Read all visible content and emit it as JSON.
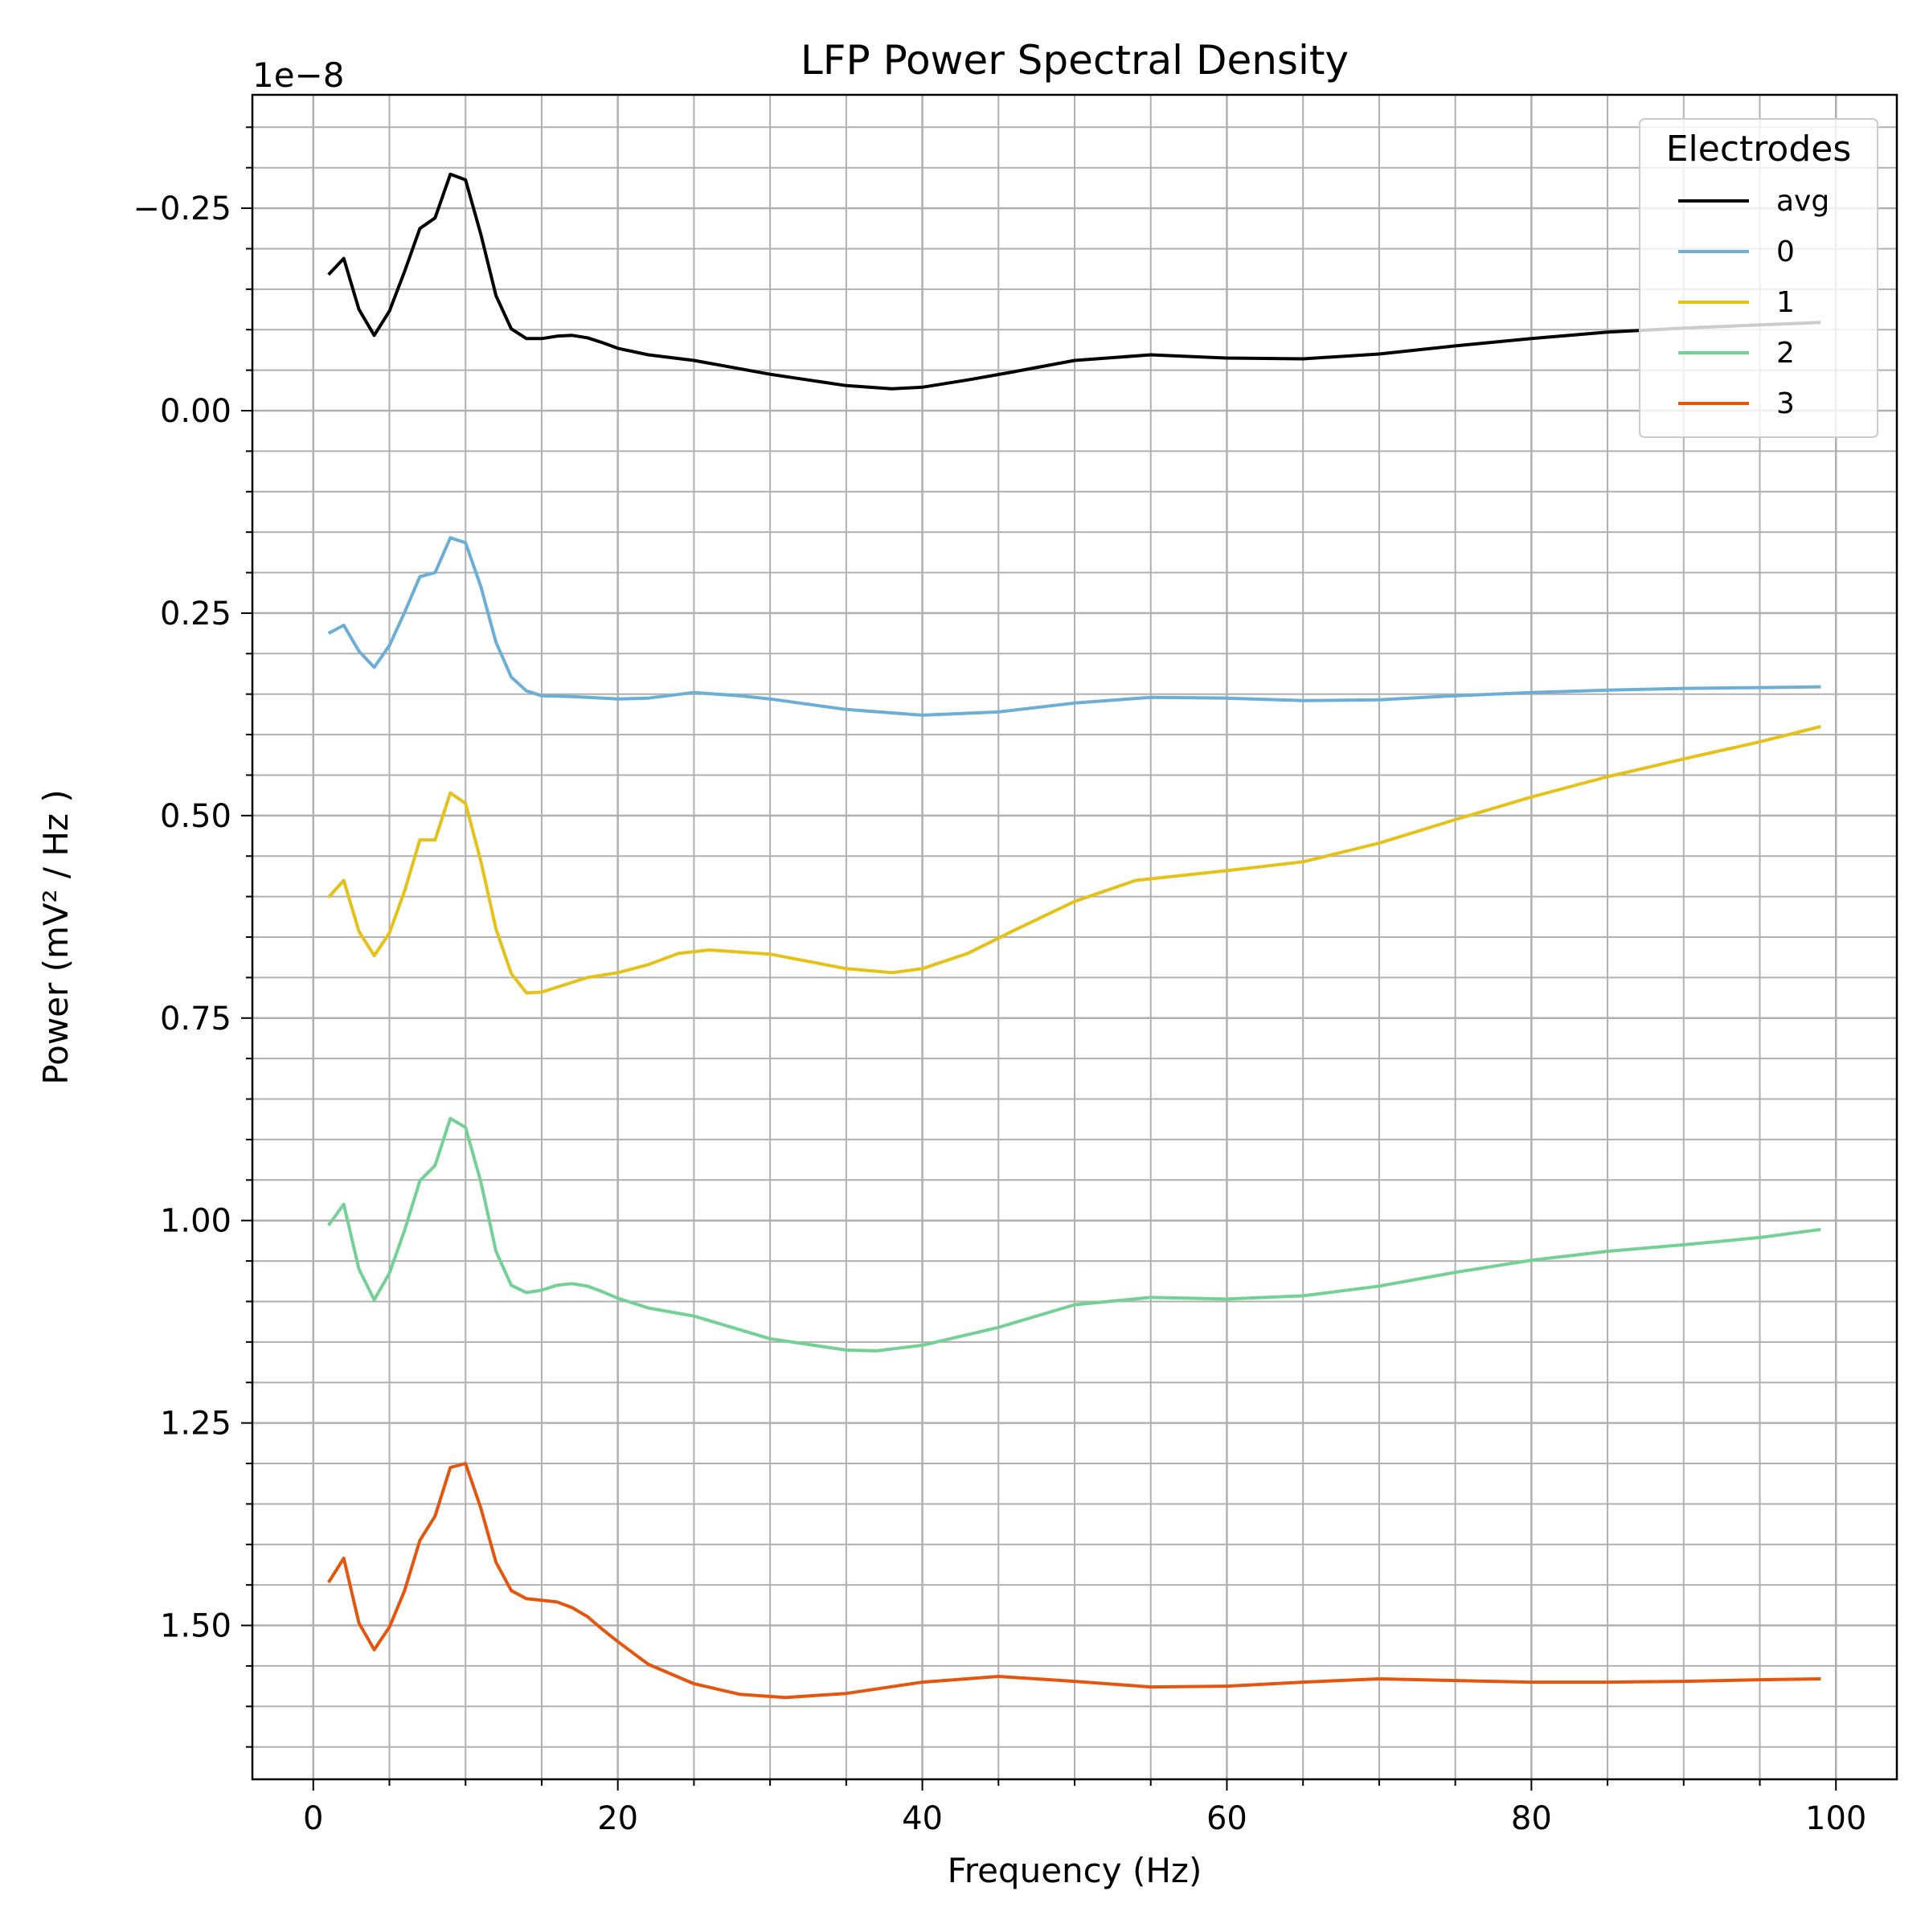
{
  "chart_data": {
    "type": "line",
    "title": "LFP Power Spectral Density",
    "xlabel": "Frequency (Hz)",
    "ylabel": "Power (mV² / Hz )",
    "y_offset_text": "1e−8",
    "y_inverted": true,
    "xlim": [
      -4,
      104
    ],
    "ylim": [
      -0.39,
      1.69
    ],
    "x_ticks": [
      0,
      20,
      40,
      60,
      80,
      100
    ],
    "x_tick_labels": [
      "0",
      "20",
      "40",
      "60",
      "80",
      "100"
    ],
    "y_ticks": [
      -0.25,
      0,
      0.25,
      0.5,
      0.75,
      1.0,
      1.25,
      1.5
    ],
    "y_tick_labels": [
      "−0.25",
      "0.00",
      "0.25",
      "0.50",
      "0.75",
      "1.00",
      "1.25",
      "1.50"
    ],
    "grid": true,
    "minor_grid": true,
    "legend": {
      "title": "Electrodes",
      "placement": "top-right"
    },
    "series": [
      {
        "name": "avg",
        "color": "#000000",
        "points": [
          [
            1,
            -0.168
          ],
          [
            2,
            -0.188
          ],
          [
            3,
            -0.125
          ],
          [
            4,
            -0.093
          ],
          [
            5,
            -0.123
          ],
          [
            6,
            -0.172
          ],
          [
            7,
            -0.225
          ],
          [
            8,
            -0.238
          ],
          [
            9,
            -0.292
          ],
          [
            10,
            -0.285
          ],
          [
            11,
            -0.218
          ],
          [
            12,
            -0.142
          ],
          [
            13,
            -0.101
          ],
          [
            14,
            -0.089
          ],
          [
            15,
            -0.089
          ],
          [
            16,
            -0.092
          ],
          [
            17,
            -0.093
          ],
          [
            18,
            -0.09
          ],
          [
            19,
            -0.084
          ],
          [
            20,
            -0.077
          ],
          [
            22,
            -0.069
          ],
          [
            25,
            -0.062
          ],
          [
            30,
            -0.045
          ],
          [
            35,
            -0.031
          ],
          [
            38,
            -0.027
          ],
          [
            40,
            -0.029
          ],
          [
            43,
            -0.038
          ],
          [
            46,
            -0.048
          ],
          [
            50,
            -0.062
          ],
          [
            55,
            -0.069
          ],
          [
            60,
            -0.065
          ],
          [
            65,
            -0.064
          ],
          [
            70,
            -0.07
          ],
          [
            75,
            -0.08
          ],
          [
            80,
            -0.089
          ],
          [
            85,
            -0.097
          ],
          [
            90,
            -0.102
          ],
          [
            95,
            -0.106
          ],
          [
            99,
            -0.109
          ]
        ]
      },
      {
        "name": "0",
        "color": "#6baed6",
        "points": [
          [
            1,
            0.275
          ],
          [
            2,
            0.265
          ],
          [
            3,
            0.297
          ],
          [
            4,
            0.317
          ],
          [
            5,
            0.29
          ],
          [
            6,
            0.249
          ],
          [
            7,
            0.205
          ],
          [
            8,
            0.2
          ],
          [
            9,
            0.157
          ],
          [
            10,
            0.163
          ],
          [
            11,
            0.217
          ],
          [
            12,
            0.286
          ],
          [
            13,
            0.329
          ],
          [
            14,
            0.346
          ],
          [
            15,
            0.352
          ],
          [
            17,
            0.353
          ],
          [
            20,
            0.356
          ],
          [
            22,
            0.355
          ],
          [
            25,
            0.348
          ],
          [
            28,
            0.352
          ],
          [
            30,
            0.356
          ],
          [
            35,
            0.369
          ],
          [
            40,
            0.376
          ],
          [
            45,
            0.372
          ],
          [
            50,
            0.361
          ],
          [
            55,
            0.354
          ],
          [
            60,
            0.355
          ],
          [
            65,
            0.358
          ],
          [
            70,
            0.357
          ],
          [
            75,
            0.352
          ],
          [
            80,
            0.348
          ],
          [
            85,
            0.345
          ],
          [
            90,
            0.343
          ],
          [
            95,
            0.342
          ],
          [
            99,
            0.341
          ]
        ]
      },
      {
        "name": "1",
        "color": "#e6c117",
        "points": [
          [
            1,
            0.601
          ],
          [
            2,
            0.58
          ],
          [
            3,
            0.643
          ],
          [
            4,
            0.673
          ],
          [
            5,
            0.645
          ],
          [
            6,
            0.593
          ],
          [
            7,
            0.53
          ],
          [
            8,
            0.53
          ],
          [
            9,
            0.472
          ],
          [
            10,
            0.485
          ],
          [
            11,
            0.556
          ],
          [
            12,
            0.64
          ],
          [
            13,
            0.695
          ],
          [
            14,
            0.719
          ],
          [
            15,
            0.718
          ],
          [
            18,
            0.7
          ],
          [
            20,
            0.694
          ],
          [
            22,
            0.684
          ],
          [
            24,
            0.67
          ],
          [
            26,
            0.666
          ],
          [
            30,
            0.671
          ],
          [
            35,
            0.689
          ],
          [
            38,
            0.694
          ],
          [
            40,
            0.689
          ],
          [
            43,
            0.67
          ],
          [
            46,
            0.642
          ],
          [
            50,
            0.606
          ],
          [
            54,
            0.58
          ],
          [
            60,
            0.568
          ],
          [
            65,
            0.557
          ],
          [
            70,
            0.534
          ],
          [
            75,
            0.505
          ],
          [
            80,
            0.477
          ],
          [
            85,
            0.452
          ],
          [
            90,
            0.43
          ],
          [
            95,
            0.409
          ],
          [
            99,
            0.39
          ]
        ]
      },
      {
        "name": "2",
        "color": "#74d196",
        "points": [
          [
            1,
            1.006
          ],
          [
            2,
            0.98
          ],
          [
            3,
            1.06
          ],
          [
            4,
            1.098
          ],
          [
            5,
            1.065
          ],
          [
            6,
            1.012
          ],
          [
            7,
            0.951
          ],
          [
            8,
            0.932
          ],
          [
            9,
            0.874
          ],
          [
            10,
            0.885
          ],
          [
            11,
            0.952
          ],
          [
            12,
            1.038
          ],
          [
            13,
            1.08
          ],
          [
            14,
            1.089
          ],
          [
            15,
            1.086
          ],
          [
            16,
            1.08
          ],
          [
            17,
            1.078
          ],
          [
            18,
            1.081
          ],
          [
            19,
            1.088
          ],
          [
            20,
            1.096
          ],
          [
            22,
            1.108
          ],
          [
            25,
            1.118
          ],
          [
            30,
            1.146
          ],
          [
            35,
            1.16
          ],
          [
            37,
            1.161
          ],
          [
            40,
            1.154
          ],
          [
            45,
            1.132
          ],
          [
            50,
            1.104
          ],
          [
            55,
            1.095
          ],
          [
            60,
            1.097
          ],
          [
            65,
            1.093
          ],
          [
            70,
            1.081
          ],
          [
            75,
            1.064
          ],
          [
            80,
            1.049
          ],
          [
            85,
            1.038
          ],
          [
            90,
            1.03
          ],
          [
            95,
            1.021
          ],
          [
            99,
            1.011
          ]
        ]
      },
      {
        "name": "3",
        "color": "#e6550d",
        "points": [
          [
            1,
            1.447
          ],
          [
            2,
            1.417
          ],
          [
            3,
            1.497
          ],
          [
            4,
            1.53
          ],
          [
            5,
            1.502
          ],
          [
            6,
            1.457
          ],
          [
            7,
            1.395
          ],
          [
            8,
            1.365
          ],
          [
            9,
            1.305
          ],
          [
            10,
            1.3
          ],
          [
            11,
            1.355
          ],
          [
            12,
            1.422
          ],
          [
            13,
            1.457
          ],
          [
            14,
            1.467
          ],
          [
            15,
            1.469
          ],
          [
            16,
            1.471
          ],
          [
            17,
            1.478
          ],
          [
            18,
            1.489
          ],
          [
            19,
            1.505
          ],
          [
            20,
            1.52
          ],
          [
            22,
            1.548
          ],
          [
            25,
            1.572
          ],
          [
            28,
            1.585
          ],
          [
            31,
            1.589
          ],
          [
            35,
            1.584
          ],
          [
            40,
            1.57
          ],
          [
            45,
            1.563
          ],
          [
            50,
            1.569
          ],
          [
            55,
            1.576
          ],
          [
            60,
            1.575
          ],
          [
            65,
            1.57
          ],
          [
            70,
            1.566
          ],
          [
            75,
            1.568
          ],
          [
            80,
            1.57
          ],
          [
            85,
            1.57
          ],
          [
            90,
            1.569
          ],
          [
            95,
            1.567
          ],
          [
            99,
            1.566
          ]
        ]
      }
    ]
  }
}
